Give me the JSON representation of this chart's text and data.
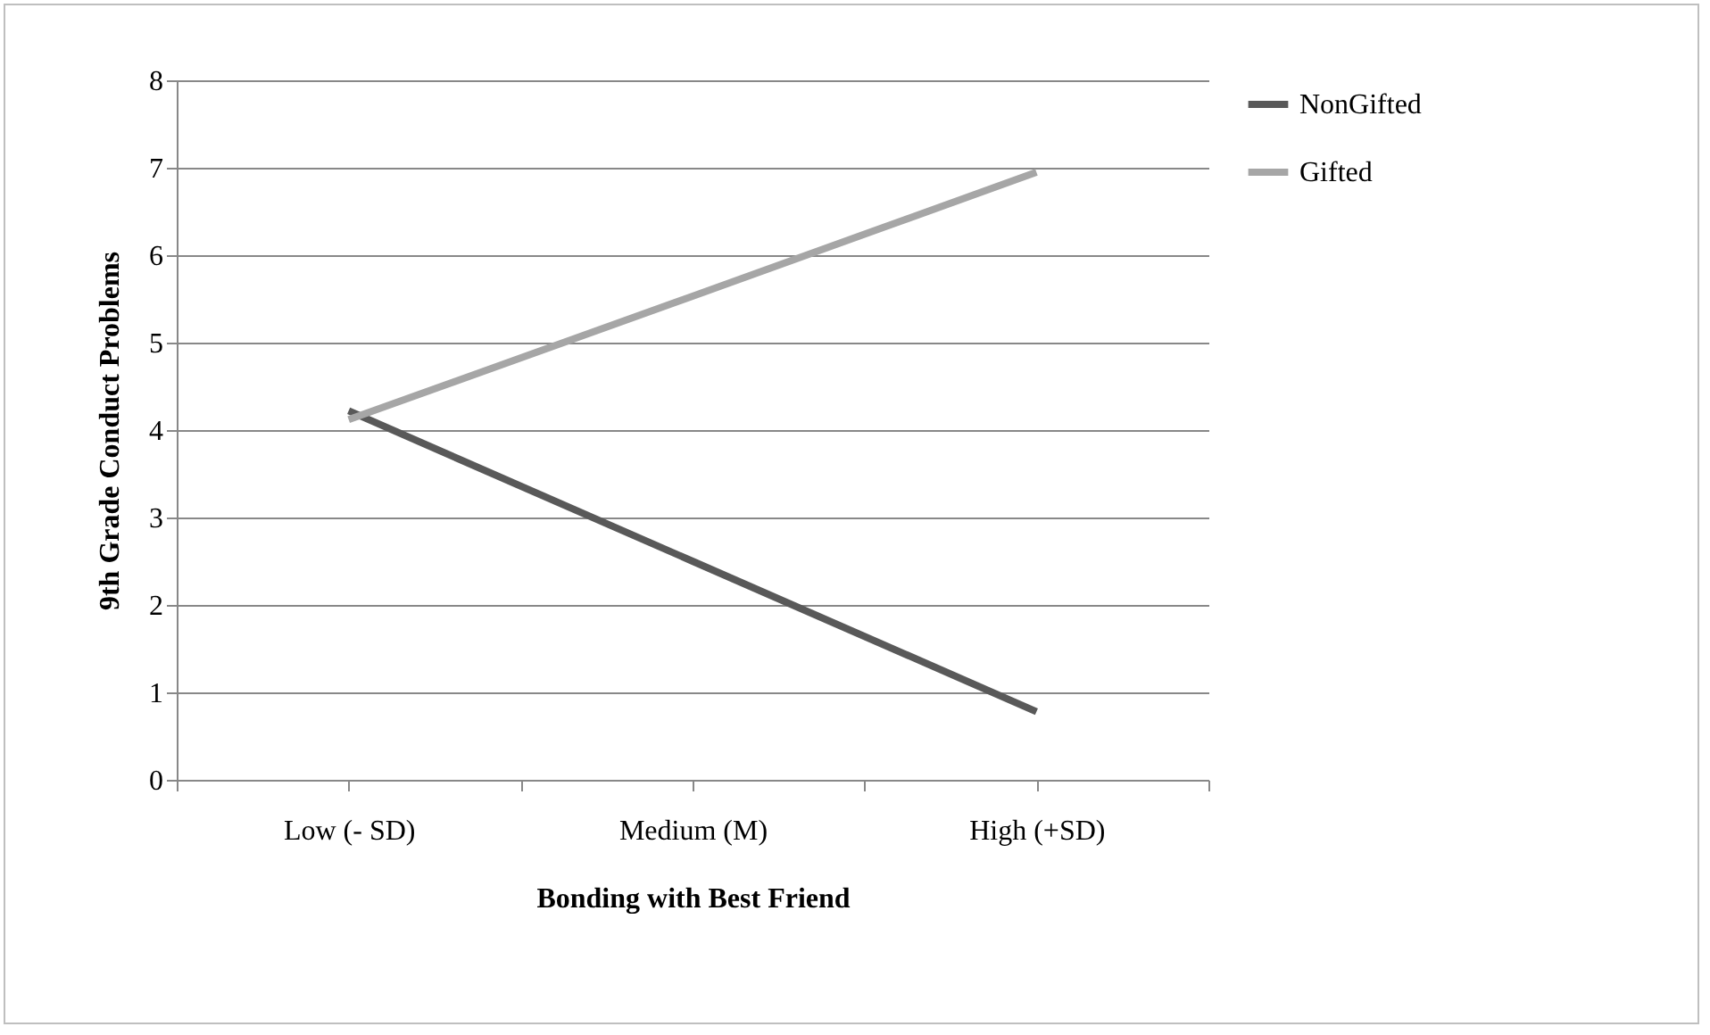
{
  "chart_data": {
    "type": "line",
    "xlabel": "Bonding with Best Friend",
    "ylabel": "9th Grade Conduct Problems",
    "categories": [
      "Low (- SD)",
      "Medium (M)",
      "High (+SD)"
    ],
    "series": [
      {
        "name": "NonGifted",
        "color": "#595959",
        "values": [
          4.22,
          2.5,
          0.78
        ]
      },
      {
        "name": "Gifted",
        "color": "#a6a6a6",
        "values": [
          4.12,
          5.53,
          6.95
        ]
      }
    ],
    "ylim": [
      0,
      8
    ],
    "yticks": [
      0,
      1,
      2,
      3,
      4,
      5,
      6,
      7,
      8
    ],
    "grid": "y",
    "legend": "right",
    "marker": "none",
    "line_style": "solid"
  }
}
